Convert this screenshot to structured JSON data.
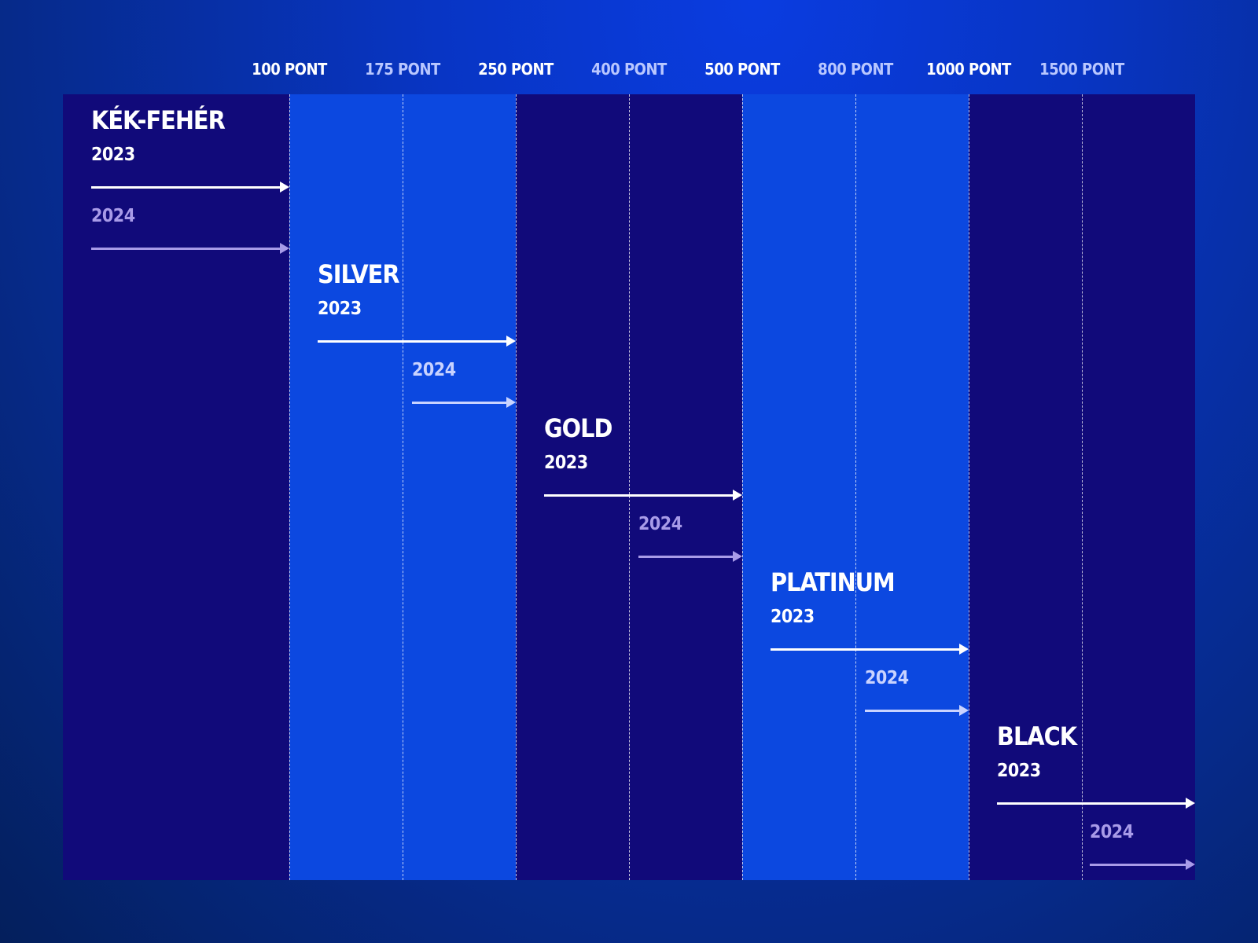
{
  "colors": {
    "dark_band": "#110a7a",
    "light_band": "#0c48e0",
    "arrow_2023": "#ffffff",
    "arrow_2024": "#a89be8",
    "header_main": "#ffffff",
    "header_sub": "#b9c7ff",
    "year_2023": "#ffffff",
    "year_2024_on_dark": "#a89be8",
    "year_2024_on_light": "#c9d3ff"
  },
  "thresholds": [
    {
      "label": "100 PONT",
      "value": 100,
      "kind": "main"
    },
    {
      "label": "175 PONT",
      "value": 175,
      "kind": "sub"
    },
    {
      "label": "250 PONT",
      "value": 250,
      "kind": "main"
    },
    {
      "label": "400 PONT",
      "value": 400,
      "kind": "sub"
    },
    {
      "label": "500 PONT",
      "value": 500,
      "kind": "main"
    },
    {
      "label": "800 PONT",
      "value": 800,
      "kind": "sub"
    },
    {
      "label": "1000 PONT",
      "value": 1000,
      "kind": "main"
    },
    {
      "label": "1500 PONT",
      "value": 1500,
      "kind": "sub"
    }
  ],
  "tiers": [
    {
      "name": "KÉK-FEHÉR",
      "band": "dark",
      "year2023": "2023",
      "year2024": "2024",
      "points_2023": 100,
      "points_2024": 100
    },
    {
      "name": "SILVER",
      "band": "light",
      "year2023": "2023",
      "year2024": "2024",
      "points_2023": 250,
      "points_2024": 175
    },
    {
      "name": "GOLD",
      "band": "dark",
      "year2023": "2023",
      "year2024": "2024",
      "points_2023": 500,
      "points_2024": 400
    },
    {
      "name": "PLATINUM",
      "band": "light",
      "year2023": "2023",
      "year2024": "2024",
      "points_2023": 1000,
      "points_2024": 800
    },
    {
      "name": "BLACK",
      "band": "dark",
      "year2023": "2023",
      "year2024": "2024",
      "points_2023": 1000,
      "points_2024": 1500
    }
  ]
}
